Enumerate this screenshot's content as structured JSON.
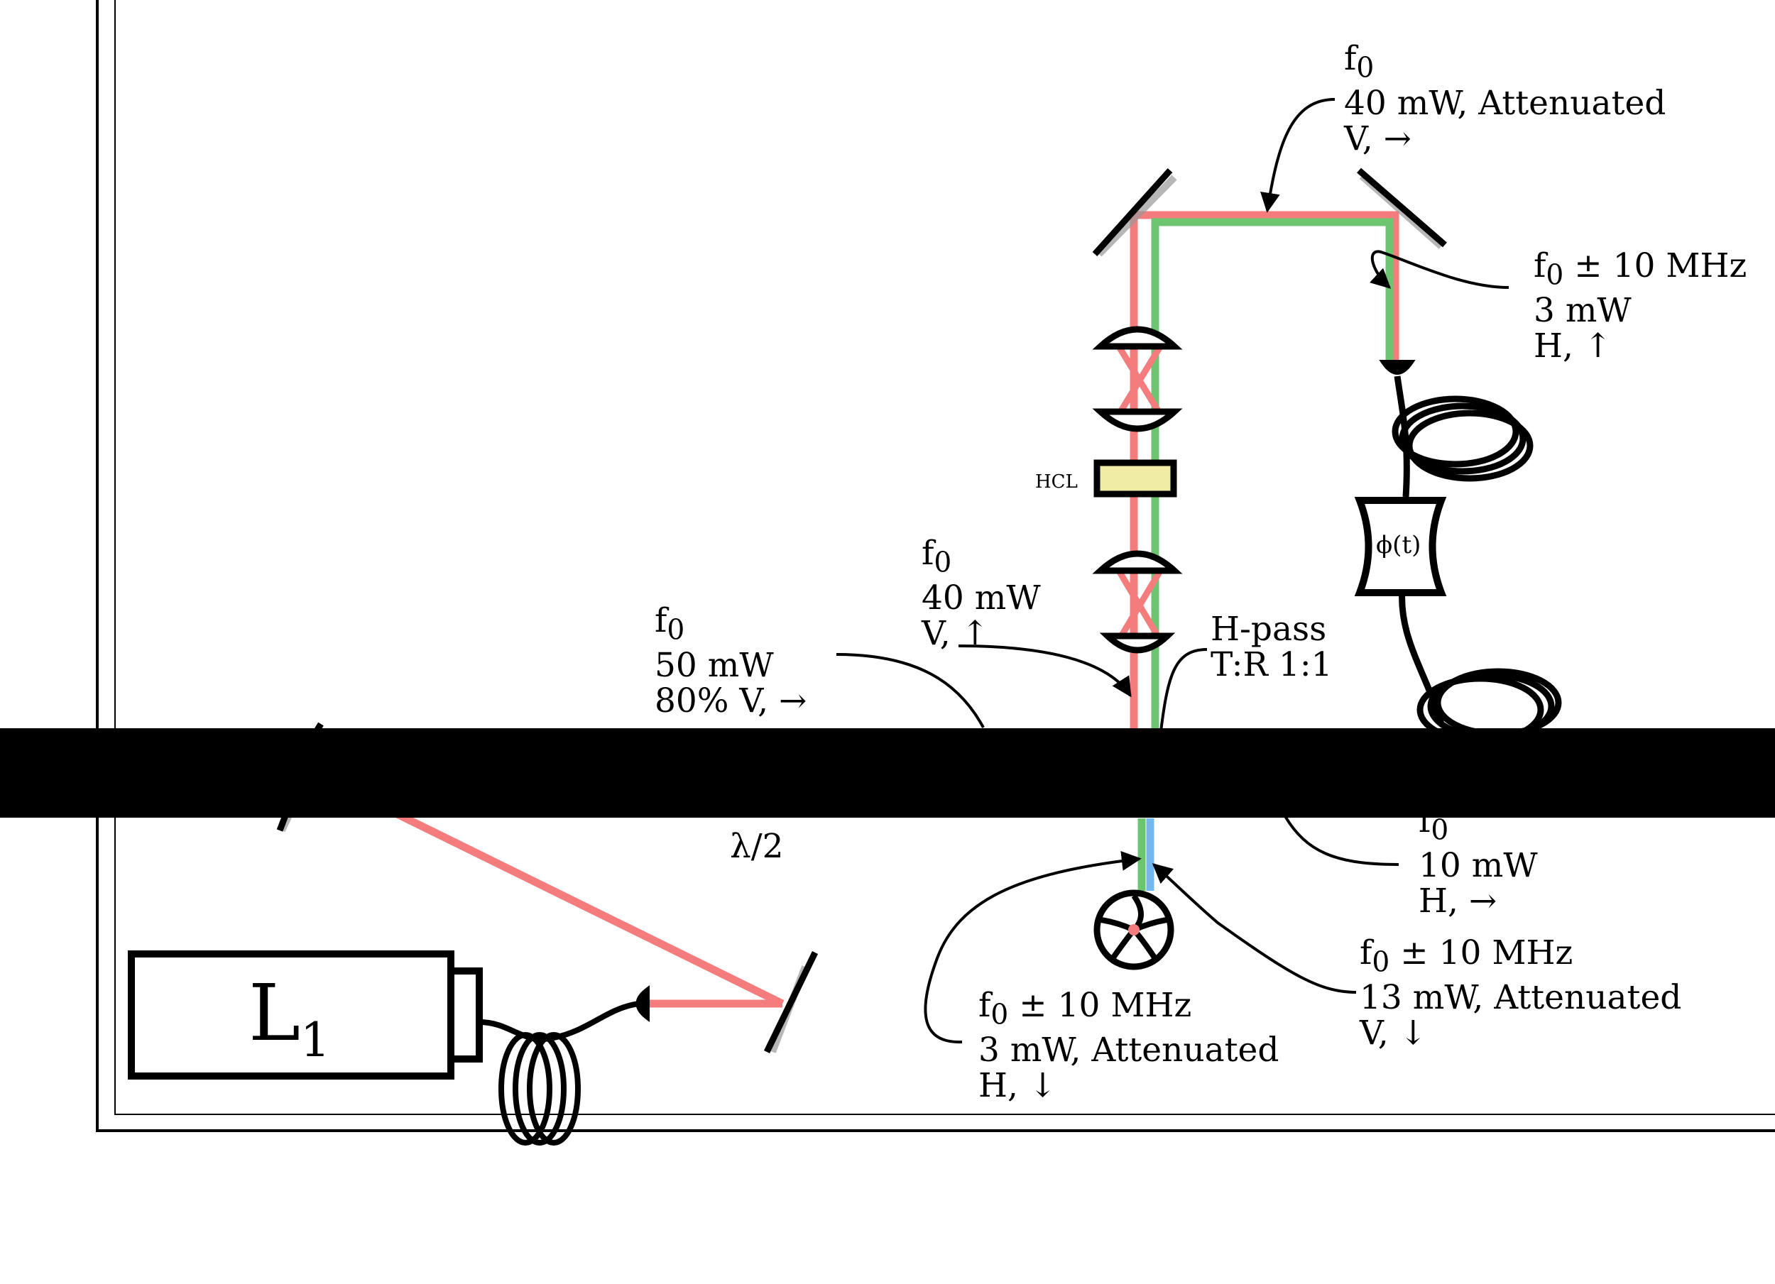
{
  "colors": {
    "beam_red": "#f47c7c",
    "beam_green": "#6dc56f",
    "beam_blue": "#74b7ef",
    "hcl_fill": "#f0eca6",
    "ink": "#000000"
  },
  "components": {
    "laser": {
      "label": "L",
      "subscript": "1"
    },
    "waveplate": {
      "label": "λ/2"
    },
    "hcl": {
      "label": "HCL"
    },
    "phase_modulator": {
      "label": "ϕ(t)"
    },
    "beamsplitter": {
      "line1": "H-pass",
      "line2": "T:R 1:1"
    }
  },
  "annotations": {
    "top_beam": {
      "freq": "f",
      "freq_sub": "0",
      "power": "40 mW, Attenuated",
      "pol": "V, →"
    },
    "right_arm": {
      "freq": "f",
      "freq_sub": "0",
      "freq_rest": " ± 10 MHz",
      "power": "3 mW",
      "pol": "H, ↑"
    },
    "left_arm": {
      "freq": "f",
      "freq_sub": "0",
      "power": "40 mW",
      "pol": "V, ↑"
    },
    "input": {
      "freq": "f",
      "freq_sub": "0",
      "power": "50 mW",
      "pol": "80% V, →"
    },
    "right_output": {
      "freq": "f",
      "freq_sub": "0",
      "power": "10 mW",
      "pol": "H, →"
    },
    "detector_left": {
      "freq": "f",
      "freq_sub": "0",
      "freq_rest": " ± 10 MHz",
      "power": "3 mW, Attenuated",
      "pol": "H, ↓"
    },
    "detector_right": {
      "freq": "f",
      "freq_sub": "0",
      "freq_rest": " ± 10 MHz",
      "power": "13 mW, Attenuated",
      "pol": "V, ↓"
    }
  }
}
